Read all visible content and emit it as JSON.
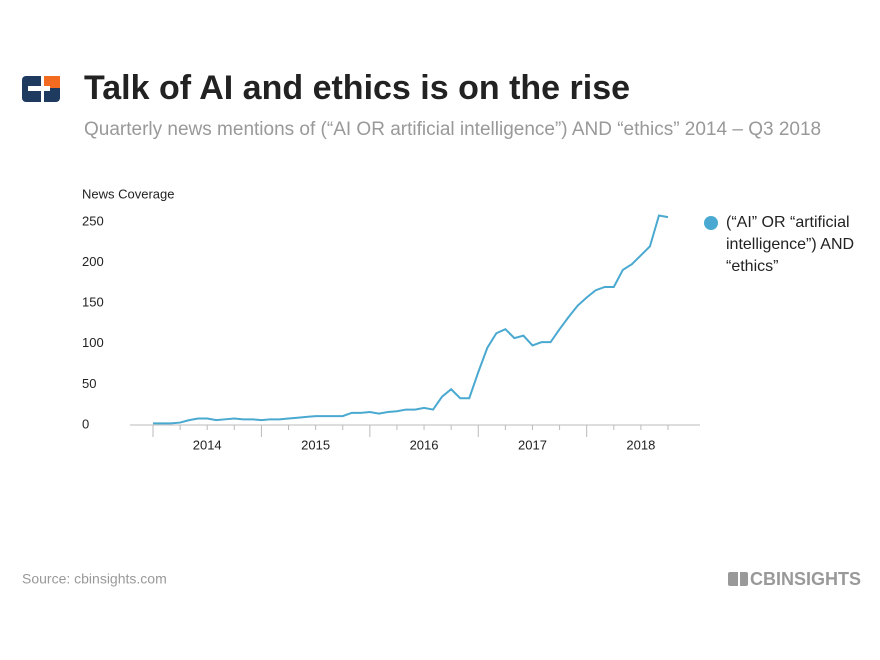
{
  "chart_data": {
    "type": "line",
    "title": "Talk of AI and ethics is on the rise",
    "subtitle": "Quarterly news mentions of (“AI OR artificial intelligence”) AND “ethics” 2014 – Q3 2018",
    "y_label": "News Coverage",
    "categories": [
      null,
      null,
      null,
      null,
      null,
      null,
      "2014",
      null,
      null,
      null,
      null,
      null,
      null,
      null,
      null,
      null,
      null,
      null,
      "2015",
      null,
      null,
      null,
      null,
      null,
      null,
      null,
      null,
      null,
      null,
      null,
      "2016",
      null,
      null,
      null,
      null,
      null,
      null,
      null,
      null,
      null,
      null,
      null,
      "2017",
      null,
      null,
      null,
      null,
      null,
      null,
      null,
      null,
      null,
      null,
      null,
      "2018",
      null,
      null,
      null
    ],
    "series": [
      {
        "name": "(“AI” OR “artificial intelligence”) AND “ethics”",
        "color": "#4aa9d0",
        "values": [
          2,
          2,
          2,
          3,
          6,
          8,
          8,
          6,
          7,
          8,
          7,
          7,
          6,
          7,
          7,
          8,
          9,
          10,
          11,
          11,
          11,
          11,
          15,
          15,
          16,
          14,
          16,
          17,
          19,
          19,
          21,
          19,
          35,
          44,
          33,
          33,
          65,
          95,
          113,
          118,
          107,
          110,
          98,
          102,
          102,
          118,
          133,
          147,
          157,
          166,
          170,
          170,
          191,
          198,
          209,
          220,
          258,
          256
        ]
      }
    ],
    "ylim": [
      0,
      260
    ],
    "yticks": [
      0,
      50,
      100,
      150,
      200,
      250
    ],
    "grid": false,
    "legend": "right"
  },
  "footer": {
    "source": "Source: cbinsights.com",
    "brand": "CBINSIGHTS"
  }
}
